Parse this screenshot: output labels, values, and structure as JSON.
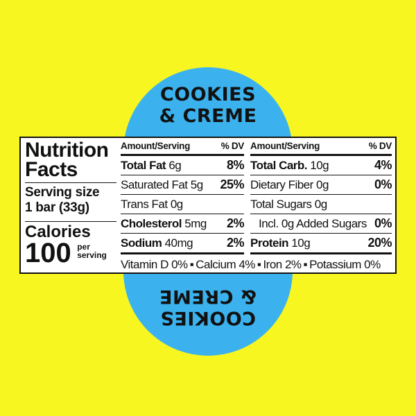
{
  "flavor": {
    "line1": "COOKIES",
    "line2": "& CREME"
  },
  "colors": {
    "background": "#f8f620",
    "accent": "#3bb2ee"
  },
  "nutrition": {
    "title_line1": "Nutrition",
    "title_line2": "Facts",
    "serving_size_label": "Serving size",
    "serving_size_value": "1 bar (33g)",
    "calories_label": "Calories",
    "calories_value": "100",
    "per_serving_line1": "per",
    "per_serving_line2": "serving",
    "header_amount": "Amount/Serving",
    "header_dv": "% DV",
    "left_rows": [
      {
        "name": "Total Fat",
        "amount": "6g",
        "dv": "8%"
      },
      {
        "name": "Saturated Fat",
        "amount": "5g",
        "dv": "25%"
      },
      {
        "name": "Trans Fat",
        "amount": "0g",
        "dv": ""
      },
      {
        "name": "Cholesterol",
        "amount": "5mg",
        "dv": "2%"
      },
      {
        "name": "Sodium",
        "amount": "40mg",
        "dv": "2%"
      }
    ],
    "right_rows": [
      {
        "name": "Total Carb.",
        "amount": "10g",
        "dv": "4%"
      },
      {
        "name": "Dietary Fiber",
        "amount": "0g",
        "dv": "0%"
      },
      {
        "name": "Total Sugars",
        "amount": "0g",
        "dv": ""
      },
      {
        "name": "Incl. 0g Added Sugars",
        "amount": "",
        "dv": "0%"
      },
      {
        "name": "Protein",
        "amount": "10g",
        "dv": "20%"
      }
    ],
    "vitamins": [
      "Vitamin D 0%",
      "Calcium 4%",
      "Iron 2%",
      "Potassium 0%"
    ],
    "separator": "▪"
  }
}
